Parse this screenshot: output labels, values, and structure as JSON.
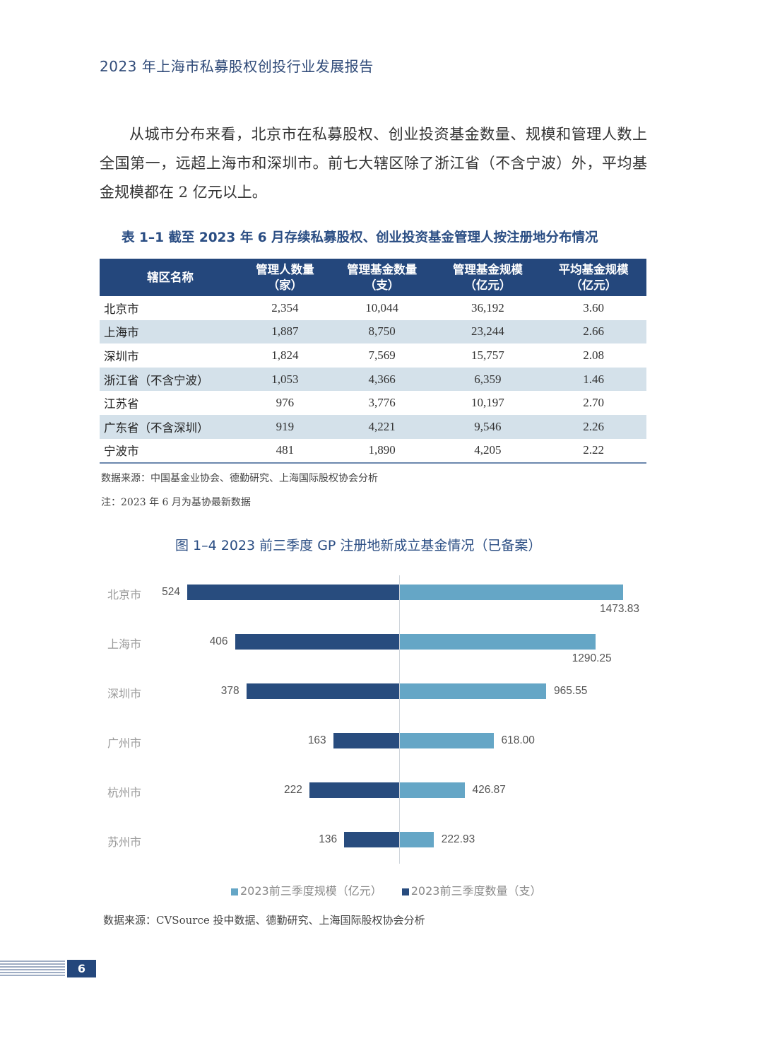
{
  "header": {
    "title": "2023 年上海市私募股权创投行业发展报告"
  },
  "paragraph": "从城市分布来看，北京市在私募股权、创业投资基金数量、规模和管理人数上全国第一，远超上海市和深圳市。前七大辖区除了浙江省（不含宁波）外，平均基金规模都在 2 亿元以上。",
  "table": {
    "caption": "表 1–1   截至 2023 年 6 月存续私募股权、创业投资基金管理人按注册地分布情况",
    "headers": [
      {
        "line1": "辖区名称",
        "line2": ""
      },
      {
        "line1": "管理人数量",
        "line2": "（家）"
      },
      {
        "line1": "管理基金数量",
        "line2": "（支）"
      },
      {
        "line1": "管理基金规模",
        "line2": "（亿元）"
      },
      {
        "line1": "平均基金规模",
        "line2": "（亿元）"
      }
    ],
    "rows": [
      [
        "北京市",
        "2,354",
        "10,044",
        "36,192",
        "3.60"
      ],
      [
        "上海市",
        "1,887",
        "8,750",
        "23,244",
        "2.66"
      ],
      [
        "深圳市",
        "1,824",
        "7,569",
        "15,757",
        "2.08"
      ],
      [
        "浙江省（不含宁波）",
        "1,053",
        "4,366",
        "6,359",
        "1.46"
      ],
      [
        "江苏省",
        "976",
        "3,776",
        "10,197",
        "2.70"
      ],
      [
        "广东省（不含深圳）",
        "919",
        "4,221",
        "9,546",
        "2.26"
      ],
      [
        "宁波市",
        "481",
        "1,890",
        "4,205",
        "2.22"
      ]
    ],
    "source": "数据来源：中国基金业协会、德勤研究、上海国际股权协会分析",
    "note": "注：2023 年 6 月为基协最新数据"
  },
  "figure": {
    "caption": "图 1–4    2023 前三季度 GP 注册地新成立基金情况（已备案）",
    "source": "数据来源：CVSource 投中数据、德勤研究、上海国际股权协会分析"
  },
  "chart_data": {
    "type": "bar",
    "orientation": "horizontal-diverging",
    "title": "图 1–4 2023 前三季度 GP 注册地新成立基金情况（已备案）",
    "categories": [
      "北京市",
      "上海市",
      "深圳市",
      "广州市",
      "杭州市",
      "苏州市"
    ],
    "series": [
      {
        "name": "2023前三季度数量（支）",
        "color": "#284c7e",
        "side": "left",
        "values": [
          524,
          406,
          378,
          163,
          222,
          136
        ],
        "labels": [
          "524",
          "406",
          "378",
          "163",
          "222",
          "136"
        ]
      },
      {
        "name": "2023前三季度规模（亿元）",
        "color": "#65a6c6",
        "side": "right",
        "values": [
          1473.83,
          1290.25,
          965.55,
          618.0,
          426.87,
          222.93
        ],
        "labels": [
          "1473.83",
          "1290.25",
          "965.55",
          "618.00",
          "426.87",
          "222.93"
        ]
      }
    ],
    "legend": [
      "2023前三季度规模（亿元）",
      "2023前三季度数量（支）"
    ],
    "legend_position": "bottom",
    "grid": false
  },
  "footer": {
    "page_number": "6"
  }
}
